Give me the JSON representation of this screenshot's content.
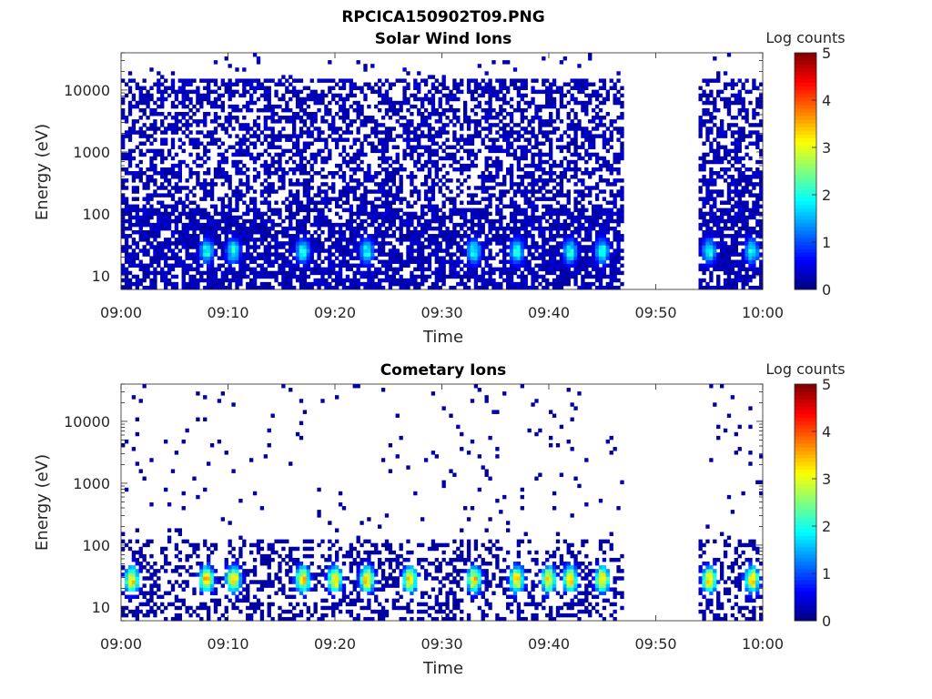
{
  "figure": {
    "title": "RPCICA150902T09.PNG"
  },
  "colors": {
    "colormap_jet": [
      "#00007f",
      "#0000ff",
      "#007fff",
      "#00ffff",
      "#7fff7f",
      "#ffff00",
      "#ff7f00",
      "#ff0000",
      "#7f0000"
    ]
  },
  "chart_data": [
    {
      "type": "heatmap",
      "title": "Solar Wind Ions",
      "xlabel": "Time",
      "ylabel": "Energy (eV)",
      "x_ticks": [
        "09:00",
        "09:10",
        "09:20",
        "09:30",
        "09:40",
        "09:50",
        "10:00"
      ],
      "x_range": [
        "09:00",
        "10:00"
      ],
      "y_ticks": [
        "10",
        "100",
        "1000",
        "10000"
      ],
      "y_scale": "log",
      "y_range": [
        6,
        40000
      ],
      "data_gap": [
        "09:47",
        "09:54"
      ],
      "colorbar": {
        "label": "Log counts",
        "ticks": [
          "0",
          "1",
          "2",
          "3",
          "4",
          "5"
        ],
        "range": [
          0,
          5
        ],
        "colormap": "jet"
      },
      "hotspot_times": [
        "09:08",
        "09:10.5",
        "09:17",
        "09:23",
        "09:33",
        "09:37",
        "09:42",
        "09:45",
        "09:55",
        "09:59"
      ],
      "hotspot_energy_eV": 25,
      "hotspot_peak_log_counts": 2.0,
      "background_log_counts": 0.3,
      "upper_energy_extent_eV": 15000
    },
    {
      "type": "heatmap",
      "title": "Cometary Ions",
      "xlabel": "Time",
      "ylabel": "Energy (eV)",
      "x_ticks": [
        "09:00",
        "09:10",
        "09:20",
        "09:30",
        "09:40",
        "09:50",
        "10:00"
      ],
      "x_range": [
        "09:00",
        "10:00"
      ],
      "y_ticks": [
        "10",
        "100",
        "1000",
        "10000"
      ],
      "y_scale": "log",
      "y_range": [
        6,
        40000
      ],
      "data_gap": [
        "09:47",
        "09:54"
      ],
      "colorbar": {
        "label": "Log counts",
        "ticks": [
          "0",
          "1",
          "2",
          "3",
          "4",
          "5"
        ],
        "range": [
          0,
          5
        ],
        "colormap": "jet"
      },
      "hotspot_times": [
        "09:01",
        "09:08",
        "09:10.5",
        "09:17",
        "09:20",
        "09:23",
        "09:27",
        "09:33",
        "09:37",
        "09:40",
        "09:42",
        "09:45",
        "09:55",
        "09:59"
      ],
      "hotspot_energy_eV": 28,
      "hotspot_peak_log_counts": 3.4,
      "background_log_counts": 0.2,
      "upper_energy_extent_eV": 130
    }
  ]
}
